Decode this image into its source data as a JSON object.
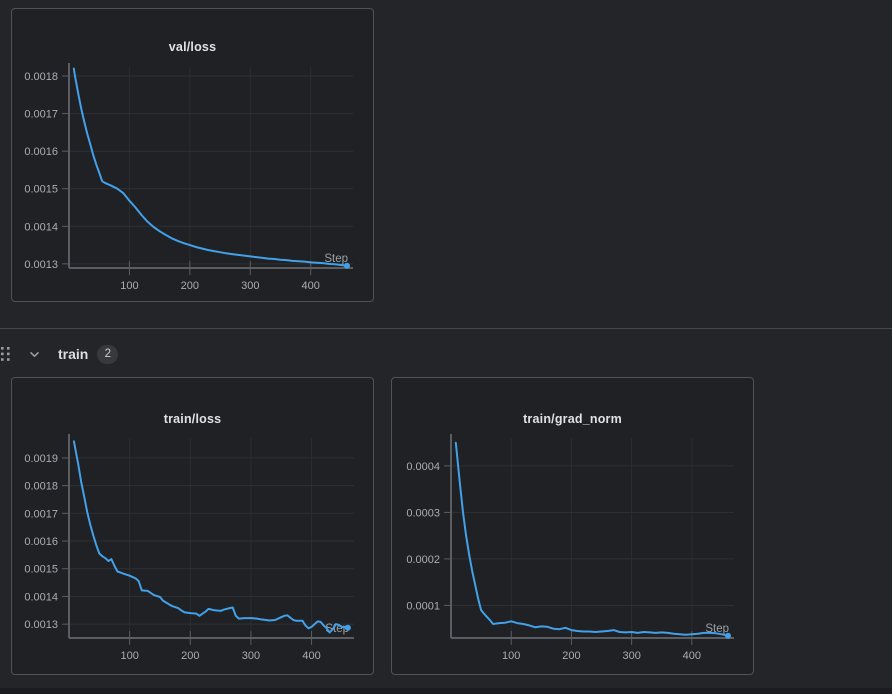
{
  "colors": {
    "page_bg": "#242529",
    "panel_bg": "#1f2124",
    "panel_border": "#505256",
    "divider": "#46484c",
    "accent_line": "#42a1e8",
    "grid_h": "#2f3134",
    "grid_v": "#2b2d30",
    "axis": "#5a5d61",
    "tick_text": "#a9aeb3",
    "title_text": "#dfe2e5",
    "step_label": "#9ba1a6",
    "icon": "#9a9da0"
  },
  "train_section": {
    "label": "train",
    "count": "2",
    "drag_handle_icon": "drag-handle",
    "collapse_icon": "chevron-down"
  },
  "chart_data": [
    {
      "type": "line",
      "title": "val/loss",
      "xlabel": "Step",
      "ylabel": "",
      "grid": true,
      "legend": false,
      "xlim": [
        0,
        470
      ],
      "ylim": [
        0.001289,
        0.001824
      ],
      "x_ticks": [
        100,
        200,
        300,
        400
      ],
      "y_ticks": [
        0.0013,
        0.0014,
        0.0015,
        0.0016,
        0.0017,
        0.0018
      ],
      "y_tick_labels": [
        "0.0013",
        "0.0014",
        "0.0015",
        "0.0016",
        "0.0017",
        "0.0018"
      ],
      "x": [
        8,
        10,
        15,
        20,
        25,
        30,
        35,
        40,
        45,
        50,
        55,
        60,
        70,
        80,
        90,
        100,
        110,
        120,
        130,
        140,
        150,
        160,
        170,
        180,
        190,
        200,
        210,
        220,
        230,
        240,
        250,
        260,
        270,
        280,
        290,
        300,
        310,
        320,
        330,
        340,
        350,
        360,
        370,
        380,
        390,
        400,
        410,
        420,
        430,
        440,
        450,
        460
      ],
      "y": [
        0.00182,
        0.0018,
        0.001755,
        0.001715,
        0.00168,
        0.001648,
        0.00162,
        0.00159,
        0.001565,
        0.001543,
        0.00152,
        0.001515,
        0.001508,
        0.0015,
        0.001488,
        0.001468,
        0.00145,
        0.00143,
        0.001412,
        0.001398,
        0.001387,
        0.001377,
        0.001368,
        0.001361,
        0.001355,
        0.00135,
        0.001345,
        0.001341,
        0.001337,
        0.001334,
        0.001331,
        0.001328,
        0.001326,
        0.001324,
        0.001322,
        0.00132,
        0.001318,
        0.001316,
        0.001314,
        0.001313,
        0.001311,
        0.00131,
        0.001308,
        0.001307,
        0.001306,
        0.001304,
        0.001303,
        0.001302,
        0.0013,
        0.001299,
        0.001297,
        0.001295
      ]
    },
    {
      "type": "line",
      "title": "train/loss",
      "xlabel": "Step",
      "ylabel": "",
      "grid": true,
      "legend": false,
      "xlim": [
        0,
        470
      ],
      "ylim": [
        0.00125,
        0.001972
      ],
      "x_ticks": [
        100,
        200,
        300,
        400
      ],
      "y_ticks": [
        0.0013,
        0.0014,
        0.0015,
        0.0016,
        0.0017,
        0.0018,
        0.0019
      ],
      "y_tick_labels": [
        "0.0013",
        "0.0014",
        "0.0015",
        "0.0016",
        "0.0017",
        "0.0018",
        "0.0019"
      ],
      "x": [
        8,
        15,
        20,
        25,
        30,
        35,
        40,
        45,
        50,
        55,
        60,
        65,
        70,
        75,
        80,
        90,
        100,
        110,
        115,
        120,
        130,
        140,
        150,
        155,
        160,
        170,
        180,
        185,
        190,
        200,
        210,
        215,
        225,
        230,
        240,
        250,
        255,
        265,
        270,
        275,
        280,
        290,
        300,
        310,
        315,
        325,
        330,
        340,
        350,
        355,
        360,
        370,
        375,
        385,
        390,
        395,
        400,
        410,
        415,
        420,
        425,
        430,
        435,
        440,
        445,
        450,
        455,
        460
      ],
      "y": [
        0.00196,
        0.00188,
        0.001815,
        0.00176,
        0.001705,
        0.00166,
        0.00162,
        0.001585,
        0.001555,
        0.001545,
        0.001538,
        0.001528,
        0.001535,
        0.00151,
        0.00149,
        0.001482,
        0.001475,
        0.001465,
        0.001455,
        0.001422,
        0.00142,
        0.001405,
        0.001398,
        0.001385,
        0.001378,
        0.001365,
        0.001358,
        0.00135,
        0.001343,
        0.00134,
        0.001338,
        0.00133,
        0.001345,
        0.001355,
        0.00135,
        0.001348,
        0.001352,
        0.001358,
        0.00136,
        0.00133,
        0.00132,
        0.001322,
        0.001322,
        0.00132,
        0.001318,
        0.001315,
        0.001313,
        0.001315,
        0.001325,
        0.00133,
        0.001332,
        0.001315,
        0.001312,
        0.001312,
        0.001295,
        0.001285,
        0.00129,
        0.00131,
        0.001308,
        0.001295,
        0.001285,
        0.00127,
        0.001282,
        0.0013,
        0.001297,
        0.00129,
        0.001288,
        0.001287
      ]
    },
    {
      "type": "line",
      "title": "train/grad_norm",
      "xlabel": "Step",
      "ylabel": "",
      "grid": true,
      "legend": false,
      "xlim": [
        0,
        470
      ],
      "ylim": [
        3e-05,
        0.00046
      ],
      "x_ticks": [
        100,
        200,
        300,
        400
      ],
      "y_ticks": [
        0.0001,
        0.0002,
        0.0003,
        0.0004
      ],
      "y_tick_labels": [
        "0.0001",
        "0.0002",
        "0.0003",
        "0.0004"
      ],
      "x": [
        8,
        15,
        20,
        25,
        30,
        35,
        40,
        45,
        50,
        55,
        60,
        65,
        70,
        80,
        90,
        100,
        110,
        120,
        130,
        140,
        150,
        160,
        170,
        180,
        190,
        200,
        210,
        220,
        230,
        240,
        250,
        260,
        270,
        280,
        290,
        300,
        310,
        320,
        330,
        340,
        350,
        360,
        370,
        380,
        390,
        400,
        410,
        420,
        430,
        440,
        450,
        460
      ],
      "y": [
        0.00045,
        0.00036,
        0.0003,
        0.00025,
        0.00021,
        0.000175,
        0.000145,
        0.000115,
        9e-05,
        8.2e-05,
        7.5e-05,
        6.8e-05,
        6e-05,
        6.2e-05,
        6.3e-05,
        6.6e-05,
        6.2e-05,
        6e-05,
        5.7e-05,
        5.3e-05,
        5.5e-05,
        5.4e-05,
        5e-05,
        4.9e-05,
        5.2e-05,
        4.7e-05,
        4.5e-05,
        4.4e-05,
        4.4e-05,
        4.3e-05,
        4.4e-05,
        4.5e-05,
        4.7e-05,
        4.3e-05,
        4.2e-05,
        4.3e-05,
        4.1e-05,
        4.3e-05,
        4.2e-05,
        4.1e-05,
        4.2e-05,
        4.1e-05,
        3.9e-05,
        3.8e-05,
        3.7e-05,
        3.8e-05,
        3.9e-05,
        4.1e-05,
        4.1e-05,
        4e-05,
        3.8e-05,
        3.5e-05
      ]
    }
  ]
}
